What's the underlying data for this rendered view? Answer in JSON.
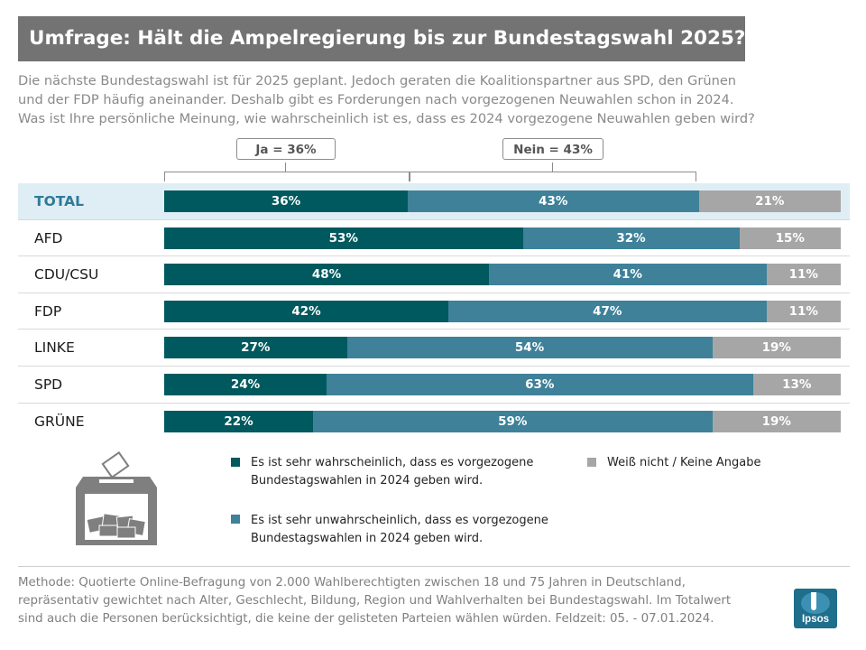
{
  "title": "Umfrage: Hält die Ampelregierung bis zur Bundestagswahl 2025?",
  "intro_lines": [
    "Die nächste Bundestagswahl ist für 2025 geplant. Jedoch geraten die Koalitionspartner aus SPD, den Grünen",
    "und der FDP häufig aneinander. Deshalb gibt es Forderungen nach vorgezogenen Neuwahlen schon in 2024.",
    "Was ist Ihre persönliche Meinung, wie wahrscheinlich ist es, dass es 2024 vorgezogene Neuwahlen geben wird?"
  ],
  "callouts": {
    "ja": "Ja = 36%",
    "nein": "Nein = 43%"
  },
  "colors": {
    "ja": "#00595e",
    "nein": "#3e8199",
    "weiss_nicht": "#a6a6a6",
    "title_bg": "#737373",
    "total_bg": "#dfeef4"
  },
  "chart_data": {
    "type": "bar",
    "orientation": "horizontal",
    "stacked": true,
    "categories": [
      "TOTAL",
      "AFD",
      "CDU/CSU",
      "FDP",
      "LINKE",
      "SPD",
      "GRÜNE"
    ],
    "series": [
      {
        "name": "Es ist sehr wahrscheinlich, dass es vorgezogene Bundestagswahlen in 2024 geben wird.",
        "key": "ja",
        "values": [
          36,
          53,
          48,
          42,
          27,
          24,
          22
        ]
      },
      {
        "name": "Es ist sehr unwahrscheinlich, dass es vorgezogene Bundestagswahlen in 2024 geben wird.",
        "key": "nein",
        "values": [
          43,
          32,
          41,
          47,
          54,
          63,
          59
        ]
      },
      {
        "name": "Weiß nicht / Keine Angabe",
        "key": "wn",
        "values": [
          21,
          15,
          11,
          11,
          19,
          13,
          19
        ]
      }
    ],
    "value_suffix": "%",
    "xlim": [
      0,
      100
    ]
  },
  "legend": {
    "ja_lines": [
      "Es ist sehr wahrscheinlich, dass es vorgezogene",
      "Bundestagswahlen in 2024 geben wird."
    ],
    "nein_lines": [
      "Es ist sehr unwahrscheinlich, dass es vorgezogene",
      "Bundestagswahlen in 2024 geben wird."
    ],
    "wn": "Weiß nicht / Keine Angabe"
  },
  "method_lines": [
    "Methode: Quotierte Online-Befragung  von 2.000 Wahlberechtigten  zwischen 18 und 75 Jahren in Deutschland,",
    "repräsentativ  gewichtet  nach Alter, Geschlecht,  Bildung, Region  und Wahlverhalten  bei Bundestagswahl.  Im Totalwert",
    "sind auch die Personen berücksichtigt, die keine der gelisteten Parteien wählen würden.  Feldzeit: 05. - 07.01.2024."
  ],
  "logo": {
    "name": "Ipsos",
    "text": "Ipsos"
  }
}
